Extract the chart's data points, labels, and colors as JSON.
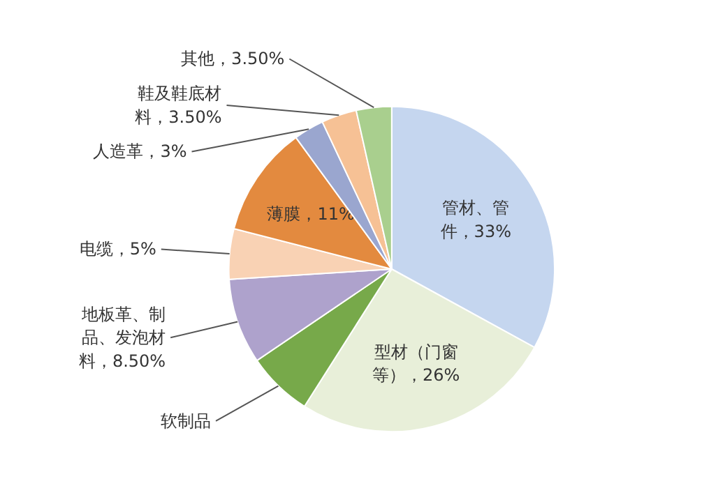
{
  "chart_data": {
    "type": "pie",
    "categories": [
      "管材、管件",
      "型材（门窗等）",
      "软制品",
      "地板革、制品、发泡材料",
      "电缆",
      "薄膜",
      "人造革",
      "鞋及鞋底材料",
      "其他"
    ],
    "values": [
      33,
      26,
      6.5,
      8.5,
      5,
      11,
      3,
      3.5,
      3.5
    ],
    "value_labels": [
      "33%",
      "26%",
      null,
      "8.50%",
      "5%",
      "11%",
      "3%",
      "3.50%",
      "3.50%"
    ],
    "colors": [
      "#c5d6ef",
      "#e8efd9",
      "#77a94a",
      "#aea2cc",
      "#f9d2b4",
      "#e38a3f",
      "#9aa6cf",
      "#f6c195",
      "#a9cf8e"
    ]
  }
}
